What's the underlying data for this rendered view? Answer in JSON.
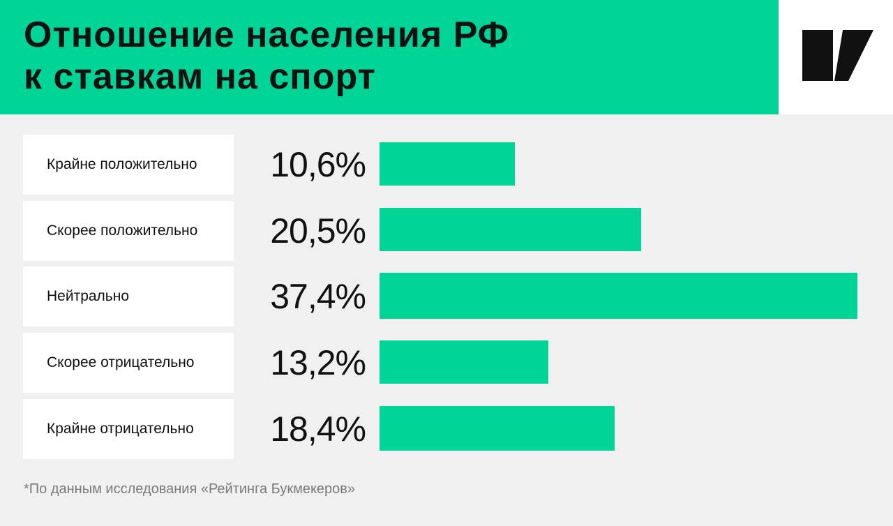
{
  "header": {
    "title_line1": "Отношение населения РФ",
    "title_line2": "к ставкам на спорт"
  },
  "logo": {
    "icon": "slash-logo-icon"
  },
  "colors": {
    "accent": "#00d496",
    "text": "#111111",
    "background": "#f0f0f0",
    "footnote": "#7a7a7a"
  },
  "chart_data": {
    "type": "bar",
    "orientation": "horizontal",
    "title": "Отношение населения РФ к ставкам на спорт",
    "categories": [
      "Крайне положительно",
      "Скорее положительно",
      "Нейтрально",
      "Скорее отрицательно",
      "Крайне отрицательно"
    ],
    "values": [
      10.6,
      20.5,
      37.4,
      13.2,
      18.4
    ],
    "value_labels": [
      "10,6%",
      "20,5%",
      "37,4%",
      "13,2%",
      "18,4%"
    ],
    "unit": "%",
    "grid": false,
    "legend": "none"
  },
  "footnote": "*По данным исследования «Рейтинга Букмекеров»"
}
